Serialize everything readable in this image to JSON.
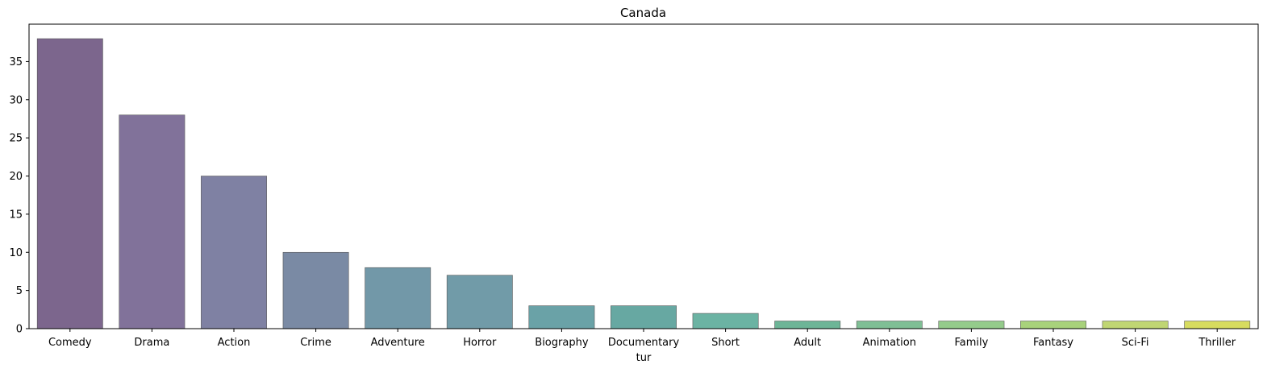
{
  "chart_data": {
    "type": "bar",
    "title": "Canada",
    "xlabel": "tur",
    "ylabel": "",
    "categories": [
      "Comedy",
      "Drama",
      "Action",
      "Crime",
      "Adventure",
      "Horror",
      "Biography",
      "Documentary",
      "Short",
      "Adult",
      "Animation",
      "Family",
      "Fantasy",
      "Sci-Fi",
      "Thriller"
    ],
    "values": [
      38,
      28,
      20,
      10,
      8,
      7,
      3,
      3,
      2,
      1,
      1,
      1,
      1,
      1,
      1
    ],
    "ylim": [
      0,
      39.9
    ],
    "yticks": [
      0,
      5,
      10,
      15,
      20,
      25,
      30,
      35
    ],
    "grid": false,
    "bar_colors": [
      "#7c668d",
      "#81729a",
      "#7f81a3",
      "#7a8aa4",
      "#7298a8",
      "#719ba8",
      "#6aa2a7",
      "#67a8a2",
      "#6bb3a3",
      "#6db597",
      "#7fbf95",
      "#94cb8b",
      "#a8d27b",
      "#c0d673",
      "#d7dc5f"
    ],
    "bar_edge_color": "#5a5a5a"
  }
}
